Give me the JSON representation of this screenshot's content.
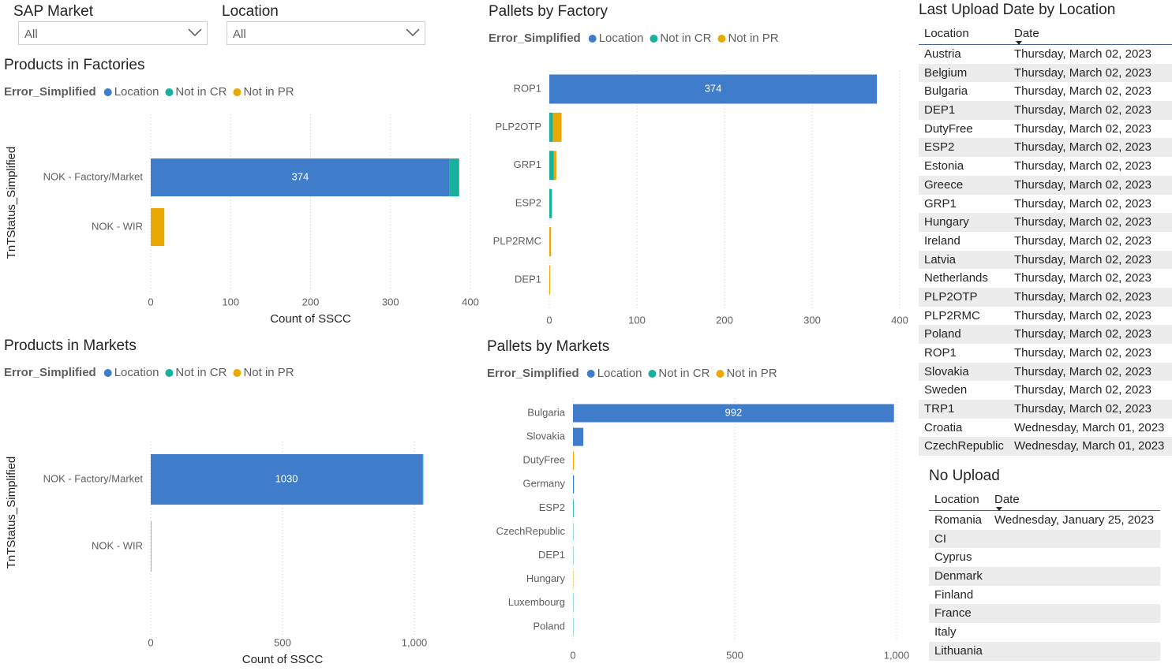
{
  "slicers": [
    {
      "label": "SAP Market",
      "value": "All"
    },
    {
      "label": "Location",
      "value": "All"
    }
  ],
  "chart_data": [
    {
      "type": "bar",
      "orientation": "horizontal",
      "stacked": true,
      "title": "Products in Factories",
      "legend_title": "Error_Simplified",
      "x_label": "Count of SSCC",
      "y_label": "TnTStatus_Simplified",
      "categories": [
        "NOK - Factory/Market",
        "NOK - WIR"
      ],
      "series": [
        {
          "name": "Location",
          "color": "#3f7cca",
          "values": [
            374,
            0
          ]
        },
        {
          "name": "Not in CR",
          "color": "#19b09e",
          "values": [
            12,
            0
          ]
        },
        {
          "name": "Not in PR",
          "color": "#e8a902",
          "values": [
            0,
            17
          ]
        }
      ],
      "xlim": [
        0,
        400
      ],
      "xticks": [
        0,
        100,
        200,
        300,
        400
      ],
      "grid": true
    },
    {
      "type": "bar",
      "orientation": "horizontal",
      "stacked": true,
      "title": "Pallets by Factory",
      "legend_title": "Error_Simplified",
      "categories": [
        "ROP1",
        "PLP2OTP",
        "GRP1",
        "ESP2",
        "PLP2RMC",
        "DEP1"
      ],
      "series": [
        {
          "name": "Location",
          "color": "#3f7cca",
          "values": [
            374,
            0,
            0,
            0,
            0,
            0
          ]
        },
        {
          "name": "Not in CR",
          "color": "#19b09e",
          "values": [
            0,
            4,
            5,
            3,
            0,
            0
          ]
        },
        {
          "name": "Not in PR",
          "color": "#e8a902",
          "values": [
            0,
            10,
            3,
            0,
            2,
            1
          ]
        }
      ],
      "xlim": [
        0,
        400
      ],
      "xticks": [
        0,
        100,
        200,
        300,
        400
      ],
      "grid": true
    },
    {
      "type": "bar",
      "orientation": "horizontal",
      "stacked": true,
      "title": "Products in Markets",
      "legend_title": "Error_Simplified",
      "x_label": "Count of SSCC",
      "y_label": "TnTStatus_Simplified",
      "categories": [
        "NOK - Factory/Market",
        "NOK - WIR"
      ],
      "series": [
        {
          "name": "Location",
          "color": "#3f7cca",
          "values": [
            1030,
            0
          ]
        },
        {
          "name": "Not in CR",
          "color": "#19b09e",
          "values": [
            4,
            0
          ]
        },
        {
          "name": "Not in PR",
          "color": "#e8a902",
          "values": [
            0,
            3
          ]
        }
      ],
      "xlim": [
        0,
        1040
      ],
      "xticks": [
        0,
        500,
        {
          "value": 1000,
          "label": "1,000"
        }
      ],
      "grid": true
    },
    {
      "type": "bar",
      "orientation": "horizontal",
      "stacked": true,
      "title": "Pallets by Markets",
      "legend_title": "Error_Simplified",
      "categories": [
        "Bulgaria",
        "Slovakia",
        "DutyFree",
        "Germany",
        "ESP2",
        "CzechRepublic",
        "DEP1",
        "Hungary",
        "Luxembourg",
        "Poland"
      ],
      "series": [
        {
          "name": "Location",
          "color": "#3f7cca",
          "values": [
            992,
            32,
            0,
            3,
            0,
            0,
            0,
            0,
            0,
            0
          ]
        },
        {
          "name": "Not in CR",
          "color": "#19b09e",
          "values": [
            0,
            0,
            0,
            0,
            2,
            1,
            1,
            0,
            1,
            1
          ]
        },
        {
          "name": "Not in PR",
          "color": "#e8a902",
          "values": [
            0,
            0,
            3,
            0,
            0,
            0,
            0,
            1,
            0,
            0
          ]
        }
      ],
      "xlim": [
        0,
        1000
      ],
      "xticks": [
        0,
        500,
        {
          "value": 1000,
          "label": "1,000"
        }
      ],
      "grid": true
    }
  ],
  "tables": [
    {
      "title": "Last Upload Date by Location",
      "columns": [
        "Location",
        "Date"
      ],
      "rows": [
        [
          "Austria",
          "Thursday, March 02, 2023"
        ],
        [
          "Belgium",
          "Thursday, March 02, 2023"
        ],
        [
          "Bulgaria",
          "Thursday, March 02, 2023"
        ],
        [
          "DEP1",
          "Thursday, March 02, 2023"
        ],
        [
          "DutyFree",
          "Thursday, March 02, 2023"
        ],
        [
          "ESP2",
          "Thursday, March 02, 2023"
        ],
        [
          "Estonia",
          "Thursday, March 02, 2023"
        ],
        [
          "Greece",
          "Thursday, March 02, 2023"
        ],
        [
          "GRP1",
          "Thursday, March 02, 2023"
        ],
        [
          "Hungary",
          "Thursday, March 02, 2023"
        ],
        [
          "Ireland",
          "Thursday, March 02, 2023"
        ],
        [
          "Latvia",
          "Thursday, March 02, 2023"
        ],
        [
          "Netherlands",
          "Thursday, March 02, 2023"
        ],
        [
          "PLP2OTP",
          "Thursday, March 02, 2023"
        ],
        [
          "PLP2RMC",
          "Thursday, March 02, 2023"
        ],
        [
          "Poland",
          "Thursday, March 02, 2023"
        ],
        [
          "ROP1",
          "Thursday, March 02, 2023"
        ],
        [
          "Slovakia",
          "Thursday, March 02, 2023"
        ],
        [
          "Sweden",
          "Thursday, March 02, 2023"
        ],
        [
          "TRP1",
          "Thursday, March 02, 2023"
        ],
        [
          "Croatia",
          "Wednesday, March 01, 2023"
        ],
        [
          "CzechRepublic",
          "Wednesday, March 01, 2023"
        ]
      ]
    },
    {
      "title": "No Upload",
      "columns": [
        "Location",
        "Date"
      ],
      "rows": [
        [
          "Romania",
          "Wednesday, January 25, 2023"
        ],
        [
          "CI",
          null
        ],
        [
          "Cyprus",
          null
        ],
        [
          "Denmark",
          null
        ],
        [
          "Finland",
          null
        ],
        [
          "France",
          null
        ],
        [
          "Italy",
          null
        ],
        [
          "Lithuania",
          null
        ]
      ]
    }
  ]
}
